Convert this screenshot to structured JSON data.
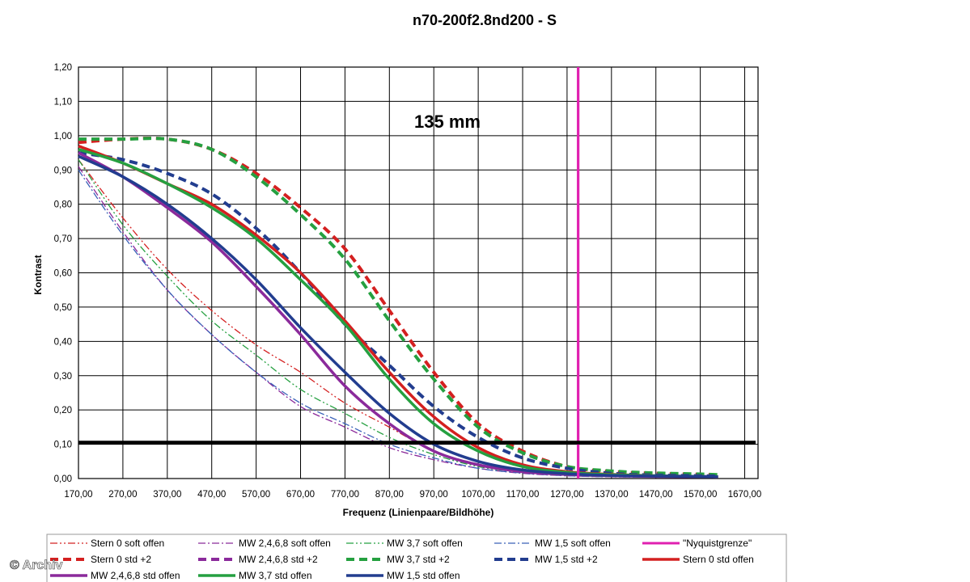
{
  "chart_data": {
    "type": "line",
    "title": "n70-200f2.8nd200 - S",
    "annotation": "135 mm",
    "xlabel": "Frequenz (Linienpaare/Bildhöhe)",
    "ylabel": "Kontrast",
    "xlim": [
      170,
      1700
    ],
    "ylim": [
      0,
      1.2
    ],
    "x_ticks": [
      "170,00",
      "270,00",
      "370,00",
      "470,00",
      "570,00",
      "670,00",
      "770,00",
      "870,00",
      "970,00",
      "1070,00",
      "1170,00",
      "1270,00",
      "1370,00",
      "1470,00",
      "1570,00",
      "1670,00"
    ],
    "y_ticks": [
      "0,00",
      "0,10",
      "0,20",
      "0,30",
      "0,40",
      "0,50",
      "0,60",
      "0,70",
      "0,80",
      "0,90",
      "1,00",
      "1,10",
      "1,20"
    ],
    "grid": true,
    "legend_position": "bottom",
    "nyquist_x": 1295,
    "threshold_y": 0.105,
    "series": [
      {
        "name": "Stern 0 soft offen",
        "color": "#d42020",
        "dash": "dashdotdot",
        "width": 1.3,
        "x": [
          170,
          270,
          370,
          470,
          570,
          670,
          770,
          870,
          970,
          1070,
          1170,
          1270,
          1370,
          1470,
          1570,
          1610
        ],
        "y": [
          0.93,
          0.76,
          0.61,
          0.49,
          0.39,
          0.31,
          0.22,
          0.15,
          0.08,
          0.04,
          0.02,
          0.01,
          0.008,
          0.005,
          0.003,
          0.003
        ]
      },
      {
        "name": "MW 2,4,6,8 soft offen",
        "color": "#8b2a9b",
        "dash": "dashdot",
        "width": 1.3,
        "x": [
          170,
          270,
          370,
          470,
          570,
          670,
          770,
          870,
          970,
          1070,
          1170,
          1270,
          1370,
          1470,
          1570,
          1610
        ],
        "y": [
          0.91,
          0.72,
          0.55,
          0.42,
          0.31,
          0.21,
          0.15,
          0.09,
          0.055,
          0.03,
          0.015,
          0.008,
          0.005,
          0.004,
          0.003,
          0.003
        ]
      },
      {
        "name": "MW 3,7 soft offen",
        "color": "#25a040",
        "dash": "dashdotdot",
        "width": 1.3,
        "x": [
          170,
          270,
          370,
          470,
          570,
          670,
          770,
          870,
          970,
          1070,
          1170,
          1270,
          1370,
          1470,
          1570,
          1610
        ],
        "y": [
          0.93,
          0.74,
          0.59,
          0.46,
          0.36,
          0.26,
          0.19,
          0.12,
          0.07,
          0.035,
          0.018,
          0.009,
          0.006,
          0.004,
          0.003,
          0.003
        ]
      },
      {
        "name": "MW 1,5 soft offen",
        "color": "#3a62b8",
        "dash": "dashdot",
        "width": 1.3,
        "x": [
          170,
          270,
          370,
          470,
          570,
          670,
          770,
          870,
          970,
          1070,
          1170,
          1270,
          1370,
          1470,
          1570,
          1610
        ],
        "y": [
          0.9,
          0.71,
          0.55,
          0.42,
          0.31,
          0.22,
          0.16,
          0.1,
          0.06,
          0.03,
          0.016,
          0.008,
          0.005,
          0.004,
          0.003,
          0.003
        ]
      },
      {
        "name": "\"Nyquistgrenze\"",
        "color": "#e020b0",
        "dash": "solid",
        "width": 3,
        "x": [],
        "y": []
      },
      {
        "name": "Stern 0 std +2",
        "color": "#d42020",
        "dash": "dashbold",
        "width": 4,
        "x": [
          170,
          270,
          370,
          470,
          570,
          670,
          770,
          870,
          970,
          1070,
          1170,
          1270,
          1370,
          1470,
          1570,
          1610
        ],
        "y": [
          0.98,
          0.99,
          0.99,
          0.96,
          0.89,
          0.79,
          0.67,
          0.49,
          0.31,
          0.16,
          0.08,
          0.035,
          0.02,
          0.015,
          0.012,
          0.01
        ]
      },
      {
        "name": "MW 2,4,6,8 std +2",
        "color": "#8b2a9b",
        "dash": "dashbold",
        "width": 4,
        "x": [],
        "y": []
      },
      {
        "name": "MW 3,7 std +2",
        "color": "#25a040",
        "dash": "dashbold",
        "width": 4,
        "x": [
          170,
          270,
          370,
          470,
          570,
          670,
          770,
          870,
          970,
          1070,
          1170,
          1270,
          1370,
          1470,
          1570,
          1610
        ],
        "y": [
          0.99,
          0.99,
          0.99,
          0.96,
          0.88,
          0.77,
          0.64,
          0.46,
          0.29,
          0.15,
          0.075,
          0.035,
          0.022,
          0.016,
          0.013,
          0.011
        ]
      },
      {
        "name": "MW 1,5 std +2",
        "color": "#223d8f",
        "dash": "dashbold",
        "width": 4,
        "x": [
          170,
          270,
          370,
          470,
          570,
          670,
          770,
          870,
          970,
          1070,
          1170,
          1270,
          1370,
          1470,
          1570,
          1610
        ],
        "y": [
          0.95,
          0.93,
          0.89,
          0.83,
          0.73,
          0.6,
          0.45,
          0.33,
          0.21,
          0.12,
          0.06,
          0.03,
          0.015,
          0.01,
          0.008,
          0.007
        ]
      },
      {
        "name": "Stern 0 std offen",
        "color": "#d42020",
        "dash": "solid",
        "width": 3.5,
        "x": [
          170,
          270,
          370,
          470,
          570,
          670,
          770,
          870,
          970,
          1070,
          1170,
          1270,
          1370,
          1470,
          1570,
          1610
        ],
        "y": [
          0.97,
          0.92,
          0.86,
          0.8,
          0.71,
          0.6,
          0.46,
          0.31,
          0.18,
          0.09,
          0.04,
          0.02,
          0.012,
          0.008,
          0.006,
          0.005
        ]
      },
      {
        "name": "MW 2,4,6,8 std offen",
        "color": "#8b2a9b",
        "dash": "solid",
        "width": 3.5,
        "x": [
          170,
          270,
          370,
          470,
          570,
          670,
          770,
          870,
          970,
          1070,
          1170,
          1270,
          1370,
          1470,
          1570,
          1610
        ],
        "y": [
          0.95,
          0.88,
          0.79,
          0.69,
          0.56,
          0.42,
          0.27,
          0.16,
          0.08,
          0.04,
          0.02,
          0.012,
          0.008,
          0.006,
          0.005,
          0.005
        ]
      },
      {
        "name": "MW 3,7 std offen",
        "color": "#25a040",
        "dash": "solid",
        "width": 3.5,
        "x": [
          170,
          270,
          370,
          470,
          570,
          670,
          770,
          870,
          970,
          1070,
          1170,
          1270,
          1370,
          1470,
          1570,
          1610
        ],
        "y": [
          0.96,
          0.92,
          0.86,
          0.79,
          0.7,
          0.58,
          0.45,
          0.29,
          0.16,
          0.08,
          0.035,
          0.018,
          0.011,
          0.008,
          0.006,
          0.005
        ]
      },
      {
        "name": "MW 1,5 std offen",
        "color": "#223d8f",
        "dash": "solid",
        "width": 3.5,
        "x": [
          170,
          270,
          370,
          470,
          570,
          670,
          770,
          870,
          970,
          1070,
          1170,
          1270,
          1370,
          1470,
          1570,
          1610
        ],
        "y": [
          0.94,
          0.88,
          0.8,
          0.7,
          0.58,
          0.44,
          0.31,
          0.19,
          0.1,
          0.05,
          0.025,
          0.014,
          0.009,
          0.007,
          0.006,
          0.005
        ]
      }
    ]
  },
  "watermark": "© Archiv"
}
